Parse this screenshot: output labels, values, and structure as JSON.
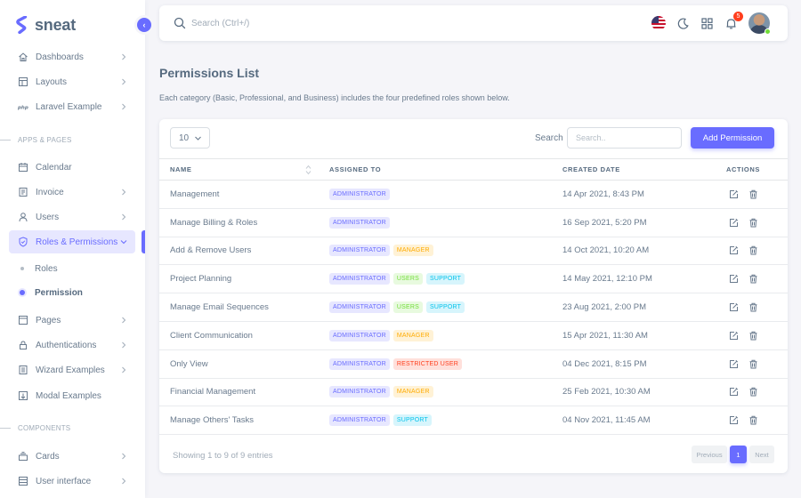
{
  "brand": {
    "name": "sneat",
    "accent": "#696cff"
  },
  "sidebar": {
    "items": [
      {
        "label": "Dashboards",
        "icon": "home-icon",
        "chevron": true
      },
      {
        "label": "Layouts",
        "icon": "layout-icon",
        "chevron": true
      },
      {
        "label": "Laravel Example",
        "icon": "php-icon",
        "chevron": true
      },
      {
        "label": "Calendar",
        "icon": "calendar-icon",
        "chevron": false
      },
      {
        "label": "Invoice",
        "icon": "invoice-icon",
        "chevron": true
      },
      {
        "label": "Users",
        "icon": "user-icon",
        "chevron": true
      },
      {
        "label": "Roles & Permissions",
        "icon": "shield-icon",
        "chevron": true
      },
      {
        "label": "Pages",
        "icon": "pages-icon",
        "chevron": true
      },
      {
        "label": "Authentications",
        "icon": "lock-icon",
        "chevron": true
      },
      {
        "label": "Wizard Examples",
        "icon": "wizard-icon",
        "chevron": true
      },
      {
        "label": "Modal Examples",
        "icon": "modal-icon",
        "chevron": false
      },
      {
        "label": "Cards",
        "icon": "cards-icon",
        "chevron": true
      },
      {
        "label": "User interface",
        "icon": "ui-icon",
        "chevron": true
      }
    ],
    "sub_items": [
      {
        "label": "Roles"
      },
      {
        "label": "Permission"
      }
    ],
    "headers": [
      "APPS & PAGES",
      "COMPONENTS"
    ]
  },
  "navbar": {
    "search_placeholder": "Search (Ctrl+/)",
    "notification_count": "5"
  },
  "page": {
    "title": "Permissions List",
    "description": "Each category (Basic, Professional, and Business) includes the four predefined roles shown below."
  },
  "table_controls": {
    "page_length": "10",
    "search_label": "Search",
    "search_placeholder": "Search..",
    "add_button": "Add Permission"
  },
  "table": {
    "columns": [
      "NAME",
      "ASSIGNED TO",
      "CREATED DATE",
      "ACTIONS"
    ],
    "rows": [
      {
        "name": "Management",
        "assigned": [
          {
            "label": "ADMINISTRATOR",
            "kind": "admin"
          }
        ],
        "date": "14 Apr 2021, 8:43 PM"
      },
      {
        "name": "Manage Billing & Roles",
        "assigned": [
          {
            "label": "ADMINISTRATOR",
            "kind": "admin"
          }
        ],
        "date": "16 Sep 2021, 5:20 PM"
      },
      {
        "name": "Add & Remove Users",
        "assigned": [
          {
            "label": "ADMINISTRATOR",
            "kind": "admin"
          },
          {
            "label": "MANAGER",
            "kind": "manager"
          }
        ],
        "date": "14 Oct 2021, 10:20 AM"
      },
      {
        "name": "Project Planning",
        "assigned": [
          {
            "label": "ADMINISTRATOR",
            "kind": "admin"
          },
          {
            "label": "USERS",
            "kind": "users"
          },
          {
            "label": "SUPPORT",
            "kind": "support"
          }
        ],
        "date": "14 May 2021, 12:10 PM"
      },
      {
        "name": "Manage Email Sequences",
        "assigned": [
          {
            "label": "ADMINISTRATOR",
            "kind": "admin"
          },
          {
            "label": "USERS",
            "kind": "users"
          },
          {
            "label": "SUPPORT",
            "kind": "support"
          }
        ],
        "date": "23 Aug 2021, 2:00 PM"
      },
      {
        "name": "Client Communication",
        "assigned": [
          {
            "label": "ADMINISTRATOR",
            "kind": "admin"
          },
          {
            "label": "MANAGER",
            "kind": "manager"
          }
        ],
        "date": "15 Apr 2021, 11:30 AM"
      },
      {
        "name": "Only View",
        "assigned": [
          {
            "label": "ADMINISTRATOR",
            "kind": "admin"
          },
          {
            "label": "RESTRICTED USER",
            "kind": "restricted"
          }
        ],
        "date": "04 Dec 2021, 8:15 PM"
      },
      {
        "name": "Financial Management",
        "assigned": [
          {
            "label": "ADMINISTRATOR",
            "kind": "admin"
          },
          {
            "label": "MANAGER",
            "kind": "manager"
          }
        ],
        "date": "25 Feb 2021, 10:30 AM"
      },
      {
        "name": "Manage Others' Tasks",
        "assigned": [
          {
            "label": "ADMINISTRATOR",
            "kind": "admin"
          },
          {
            "label": "SUPPORT",
            "kind": "support"
          }
        ],
        "date": "04 Nov 2021, 11:45 AM"
      }
    ]
  },
  "footer": {
    "info": "Showing 1 to 9 of 9 entries",
    "previous": "Previous",
    "current_page": "1",
    "next": "Next"
  }
}
